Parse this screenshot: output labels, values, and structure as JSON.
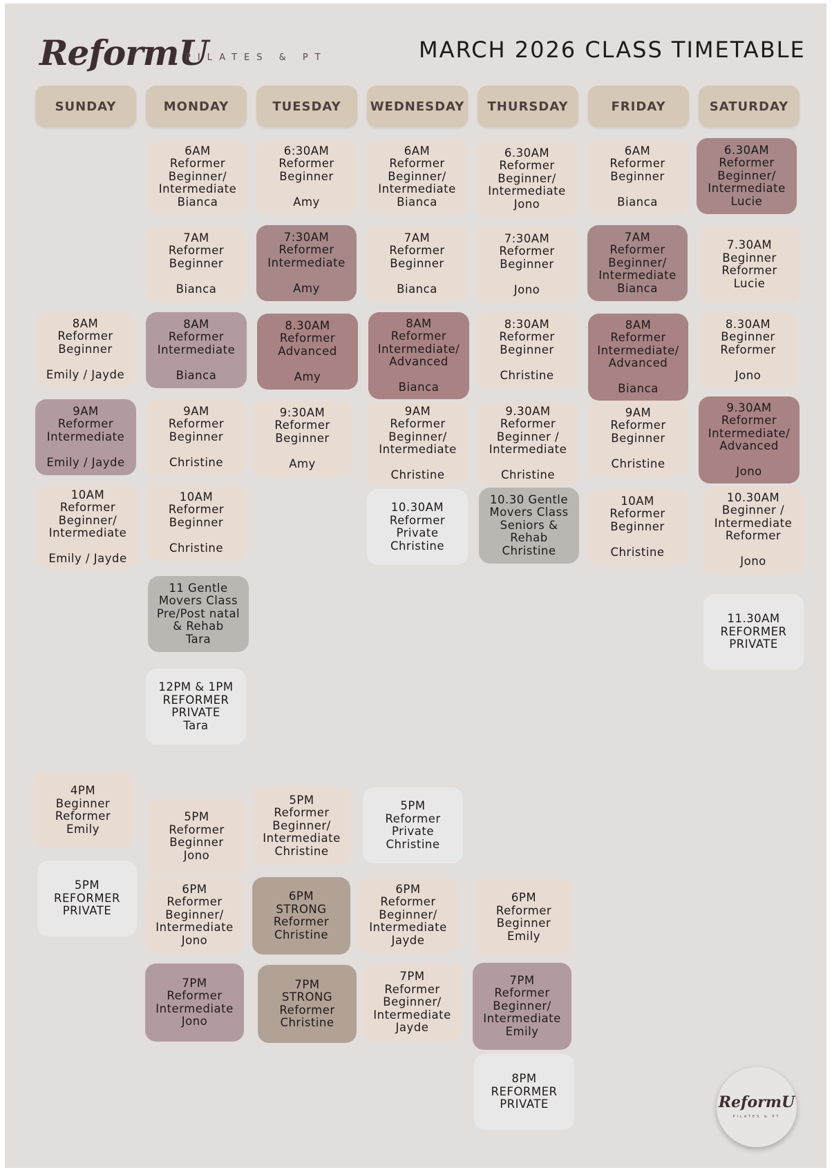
{
  "header": {
    "logo": "ReformU",
    "logo_subtitle": "PILATES & PT",
    "title": "MARCH 2026 CLASS TIMETABLE"
  },
  "days": [
    "SUNDAY",
    "MONDAY",
    "TUESDAY",
    "WEDNESDAY",
    "THURSDAY",
    "FRIDAY",
    "SATURDAY"
  ],
  "classes": {
    "sunday": [
      "8AM\nReformer\nBeginner\n\nEmily / Jayde",
      "9AM\nReformer\nIntermediate\n\nEmily / Jayde",
      "10AM\nReformer\nBeginner/\nIntermediate\n\nEmily / Jayde",
      "4PM\nBeginner\nReformer\nEmily",
      "5PM\nREFORMER\nPRIVATE"
    ],
    "monday": [
      "6AM\nReformer\nBeginner/\nIntermediate\nBianca",
      "7AM\nReformer\nBeginner\n\nBianca",
      "8AM\nReformer\nIntermediate\n\nBianca",
      "9AM\nReformer\nBeginner\n\nChristine",
      "10AM\nReformer\nBeginner\n\nChristine",
      "11 Gentle\nMovers Class\nPre/Post natal\n& Rehab\nTara",
      "12PM & 1PM\nREFORMER\nPRIVATE\nTara",
      "5PM\nReformer\nBeginner\nJono",
      "6PM\nReformer\nBeginner/\nIntermediate\nJono",
      "7PM\nReformer\nIntermediate\nJono"
    ],
    "tuesday": [
      "6:30AM\nReformer\nBeginner\n\nAmy",
      "7:30AM\nReformer\nIntermediate\n\nAmy",
      "8.30AM\nReformer\nAdvanced\n\nAmy",
      "9:30AM\nReformer\nBeginner\n\nAmy",
      "5PM\nReformer\nBeginner/\nIntermediate\nChristine",
      "6PM\nSTRONG\nReformer\nChristine",
      "7PM\nSTRONG\nReformer\nChristine"
    ],
    "wednesday": [
      "6AM\nReformer\nBeginner/\nIntermediate\nBianca",
      "7AM\nReformer\nBeginner\n\nBianca",
      "8AM\nReformer\nIntermediate/\nAdvanced\n\nBianca",
      "9AM\nReformer\nBeginner/\nIntermediate\n\nChristine",
      "10.30AM\nReformer\nPrivate\nChristine",
      "5PM\nReformer\nPrivate\nChristine",
      "6PM\nReformer\nBeginner/\nIntermediate\nJayde",
      "7PM\nReformer\nBeginner/\nIntermediate\nJayde"
    ],
    "thursday": [
      "6.30AM\nReformer\nBeginner/\nIntermediate\nJono",
      "7:30AM\nReformer\nBeginner\n\nJono",
      "8:30AM\nReformer\nBeginner\n\nChristine",
      "9.30AM\nReformer\nBeginner /\nIntermediate\n\nChristine",
      "10.30 Gentle\nMovers Class\nSeniors &\nRehab\nChristine",
      "6PM\nReformer\nBeginner\nEmily",
      "7PM\nReformer\nBeginner/\nIntermediate\nEmily",
      "8PM\nREFORMER\nPRIVATE"
    ],
    "friday": [
      "6AM\nReformer\nBeginner\n\nBianca",
      "7AM\nReformer\nBeginner/\nIntermediate\nBianca",
      "8AM\nReformer\nIntermediate/\nAdvanced\n\nBianca",
      "9AM\nReformer\nBeginner\n\nChristine",
      "10AM\nReformer\nBeginner\n\nChristine"
    ],
    "saturday": [
      "6.30AM\nReformer\nBeginner/\nIntermediate\nLucie",
      "7.30AM\nBeginner\nReformer\nLucie",
      "8.30AM\nBeginner\nReformer\n\nJono",
      "9.30AM\nReformer\nIntermediate/\nAdvanced\n\nJono",
      "10.30AM\nBeginner /\nIntermediate\nReformer\n\nJono",
      "11.30AM\nREFORMER\nPRIVATE"
    ]
  },
  "colors": {
    "page_background": "#e1dedc",
    "day_header": "#d6c8b6",
    "light_tile": "#e8dbd2",
    "private_tile": "#e9e8e8",
    "intermediate_tile": "#b29b9e",
    "advanced_tile": "#a98284",
    "gentle_movers_tile": "#bab7b2",
    "strong_tile": "#b2a195"
  }
}
